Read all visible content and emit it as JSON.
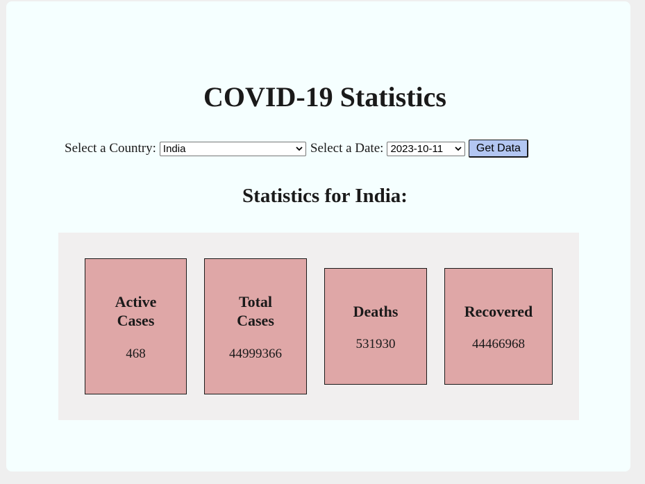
{
  "page": {
    "title": "COVID-19 Statistics"
  },
  "controls": {
    "country_label": "Select a Country:",
    "country_value": "India",
    "date_label": "Select a Date:",
    "date_value": "2023-10-11",
    "button_label": "Get Data"
  },
  "stats": {
    "heading": "Statistics for India:",
    "cards": [
      {
        "title": "Active Cases",
        "value": "468"
      },
      {
        "title": "Total Cases",
        "value": "44999366"
      },
      {
        "title": "Deaths",
        "value": "531930"
      },
      {
        "title": "Recovered",
        "value": "44466968"
      }
    ]
  },
  "colors": {
    "panel_background": "#f5ffff",
    "cards_area_background": "#f1efef",
    "card_fill": "#dfa7a7",
    "button_fill": "#b3c6f2"
  },
  "icons": {
    "select_arrow": "chevron-down-icon"
  }
}
